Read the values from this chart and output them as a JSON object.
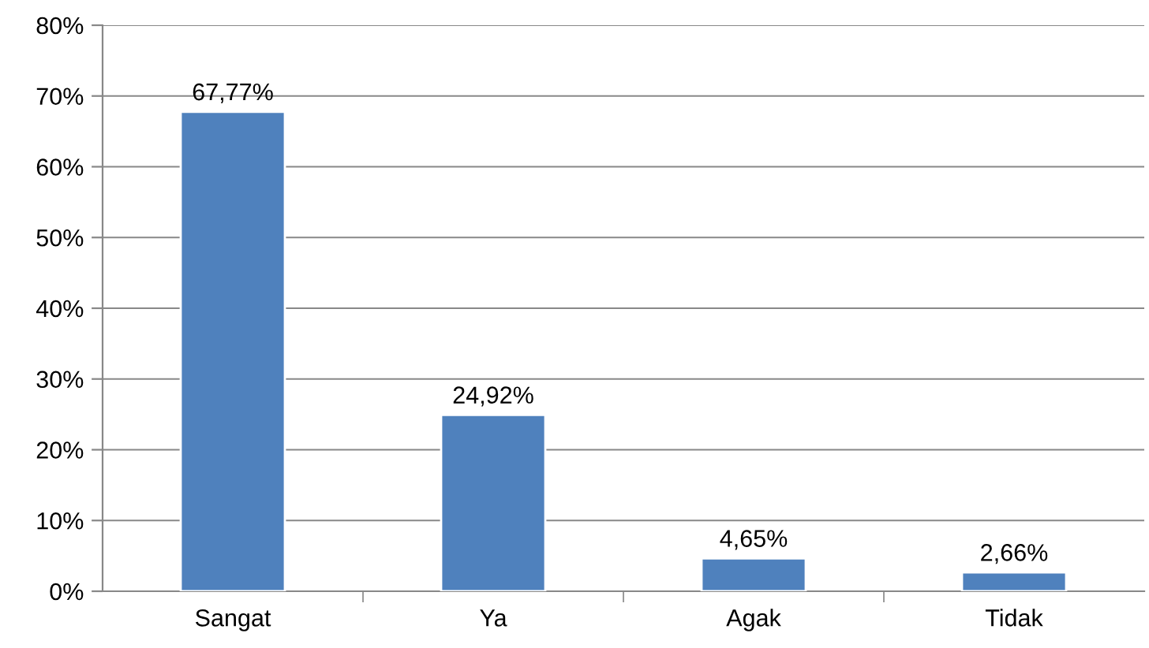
{
  "chart_data": {
    "type": "bar",
    "categories": [
      "Sangat",
      "Ya",
      "Agak",
      "Tidak"
    ],
    "values": [
      67.77,
      24.92,
      4.65,
      2.66
    ],
    "color": "#4f81bd",
    "value_labels": [
      "67,77%",
      "24,92%",
      "4,65%",
      "2,66%"
    ],
    "ylim": [
      0,
      80
    ],
    "yticks": [
      {
        "value": 0,
        "label": "0%"
      },
      {
        "value": 10,
        "label": "10%"
      },
      {
        "value": 20,
        "label": "20%"
      },
      {
        "value": 30,
        "label": "30%"
      },
      {
        "value": 40,
        "label": "40%"
      },
      {
        "value": 50,
        "label": "50%"
      },
      {
        "value": 60,
        "label": "60%"
      },
      {
        "value": 70,
        "label": "70%"
      },
      {
        "value": 80,
        "label": "80%"
      }
    ],
    "grid": "y"
  }
}
